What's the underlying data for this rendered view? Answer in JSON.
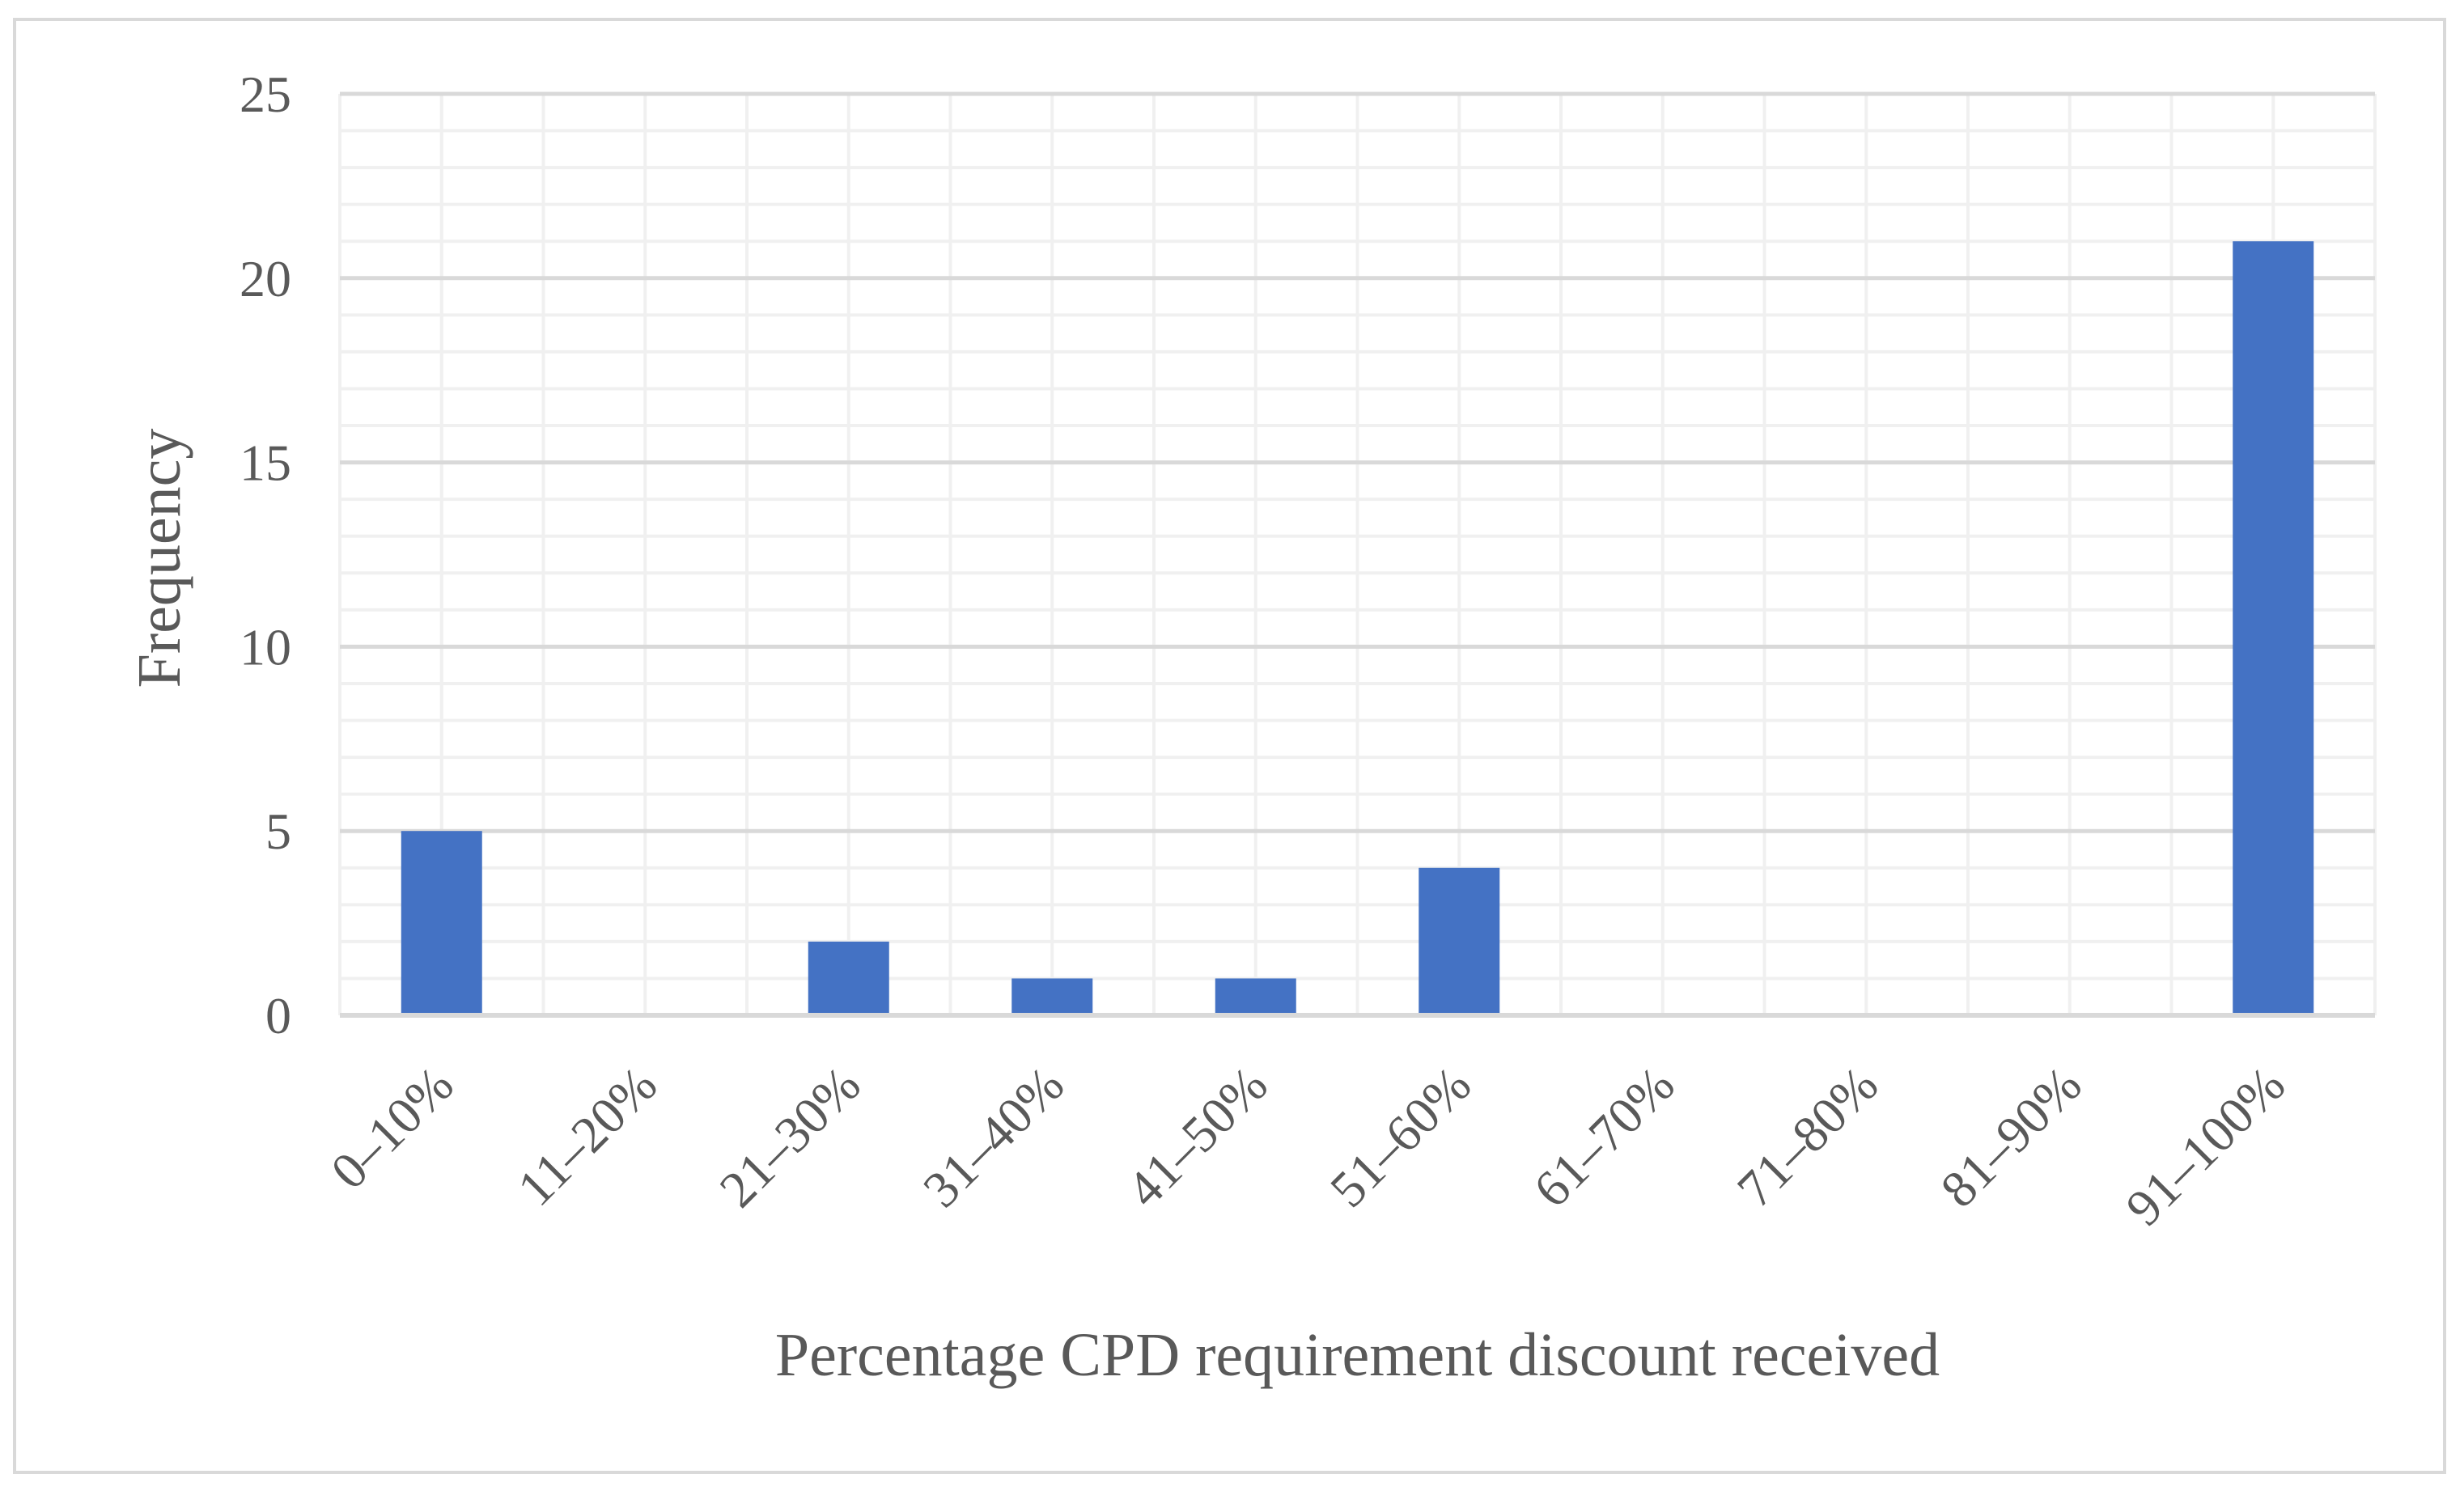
{
  "chart_data": {
    "type": "bar",
    "categories": [
      "0–10%",
      "11–20%",
      "21–30%",
      "31–40%",
      "41–50%",
      "51–60%",
      "61–70%",
      "71–80%",
      "81–90%",
      "91–100%"
    ],
    "series": [
      {
        "values": [
          5,
          0,
          2,
          1,
          1,
          4,
          0,
          0,
          0,
          21
        ]
      }
    ],
    "xlabel": "Percentage CPD requirement discount received",
    "ylabel": "Frequency",
    "ylim": [
      0,
      25
    ],
    "yticks": [
      0,
      5,
      10,
      15,
      20,
      25
    ],
    "grid": true,
    "legend": "none",
    "colors": {
      "bar": "#4472c4",
      "grid_major": "#d9d9d9",
      "grid_minor": "#f0f0f0",
      "text": "#595959"
    }
  }
}
